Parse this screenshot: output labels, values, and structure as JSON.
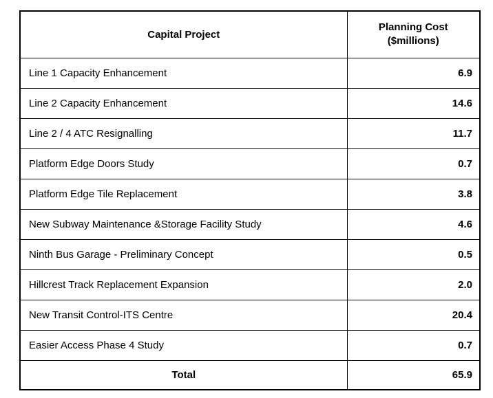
{
  "table": {
    "headers": {
      "project": "Capital Project",
      "cost": "Planning Cost\n($millions)"
    },
    "rows": [
      {
        "project": "Line 1 Capacity Enhancement",
        "cost": "6.9"
      },
      {
        "project": "Line 2 Capacity Enhancement",
        "cost": "14.6"
      },
      {
        "project": "Line 2 / 4 ATC Resignalling",
        "cost": "11.7"
      },
      {
        "project": "Platform Edge Doors Study",
        "cost": "0.7"
      },
      {
        "project": "Platform Edge Tile Replacement",
        "cost": "3.8"
      },
      {
        "project": "New Subway Maintenance &Storage Facility Study",
        "cost": "4.6"
      },
      {
        "project": "Ninth Bus Garage - Preliminary Concept",
        "cost": "0.5"
      },
      {
        "project": "Hillcrest Track Replacement Expansion",
        "cost": "2.0"
      },
      {
        "project": "New Transit Control-ITS Centre",
        "cost": "20.4"
      },
      {
        "project": "Easier Access Phase 4 Study",
        "cost": "0.7"
      }
    ],
    "total": {
      "label": "Total",
      "cost": "65.9"
    }
  },
  "colors": {
    "border": "#000000",
    "text": "#000000",
    "background": "#ffffff"
  }
}
